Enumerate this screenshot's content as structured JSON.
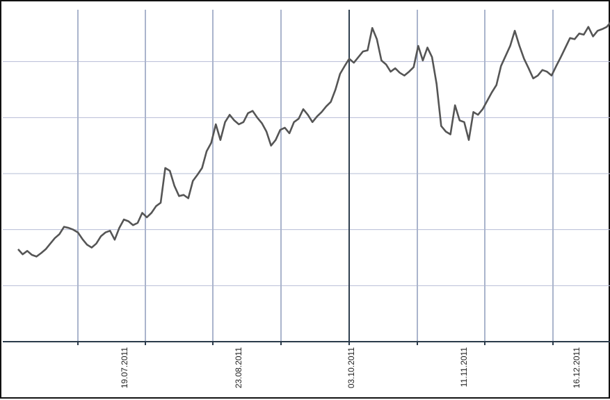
{
  "chart_data": {
    "type": "line",
    "title": "",
    "xlabel": "",
    "ylabel": "",
    "x_tick_labels": [
      "19.07.2011",
      "23.08.2011",
      "03.10.2011",
      "11.11.2011",
      "16.12.2011"
    ],
    "y_tick_labels": [],
    "grid": true,
    "legend": "none",
    "ylim": [
      0,
      6
    ],
    "colors": {
      "line": "#555555",
      "grid_vertical": "#aab4cc",
      "grid_horizontal": "#b6bcd6",
      "axis": "#2a3a4a",
      "highlight_vertical": "#2f3f4f"
    },
    "series": [
      {
        "values": [
          1.65,
          1.56,
          1.62,
          1.55,
          1.52,
          1.58,
          1.65,
          1.75,
          1.85,
          1.92,
          2.05,
          2.03,
          2.0,
          1.95,
          1.83,
          1.73,
          1.68,
          1.75,
          1.88,
          1.95,
          1.98,
          1.82,
          2.03,
          2.18,
          2.15,
          2.08,
          2.12,
          2.3,
          2.22,
          2.3,
          2.42,
          2.48,
          3.1,
          3.05,
          2.78,
          2.6,
          2.62,
          2.56,
          2.87,
          2.98,
          3.1,
          3.4,
          3.55,
          3.88,
          3.6,
          3.92,
          4.05,
          3.95,
          3.88,
          3.92,
          4.08,
          4.12,
          4.0,
          3.9,
          3.75,
          3.5,
          3.6,
          3.78,
          3.82,
          3.72,
          3.92,
          3.98,
          4.15,
          4.05,
          3.92,
          4.02,
          4.1,
          4.2,
          4.28,
          4.5,
          4.78,
          4.92,
          5.05,
          4.98,
          5.08,
          5.18,
          5.2,
          5.6,
          5.4,
          5.02,
          4.95,
          4.82,
          4.88,
          4.8,
          4.75,
          4.82,
          4.9,
          5.28,
          5.02,
          5.25,
          5.08,
          4.6,
          3.85,
          3.75,
          3.7,
          4.22,
          3.95,
          3.92,
          3.6,
          4.1,
          4.05,
          4.15,
          4.3,
          4.45,
          4.58,
          4.92,
          5.1,
          5.28,
          5.55,
          5.28,
          5.05,
          4.88,
          4.7,
          4.75,
          4.85,
          4.82,
          4.75,
          4.92,
          5.08,
          5.25,
          5.42,
          5.4,
          5.5,
          5.48,
          5.62,
          5.45,
          5.55,
          5.58,
          5.62,
          5.72
        ]
      }
    ]
  }
}
